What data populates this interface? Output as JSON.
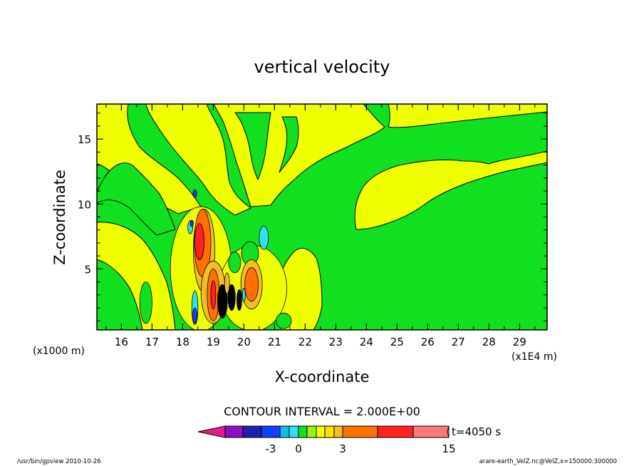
{
  "chart_data": {
    "type": "heatmap",
    "title": "vertical velocity",
    "xlabel": "X-coordinate",
    "ylabel": "Z-coordinate",
    "x_unit_label": "(x1E4 m)",
    "y_unit_label": "(x1000 m)",
    "xlim": [
      15.2,
      29.9
    ],
    "ylim": [
      0.3,
      17.7
    ],
    "x_ticks": [
      16,
      17,
      18,
      19,
      20,
      21,
      22,
      23,
      24,
      25,
      26,
      27,
      28,
      29
    ],
    "y_ticks": [
      5,
      10,
      15
    ],
    "contour_interval_text": "CONTOUR INTERVAL = 2.000E+00",
    "time_label": "t=4050 s",
    "colorbar": {
      "labels": [
        {
          "text": "-3",
          "value": -3
        },
        {
          "text": "0",
          "value": 0
        },
        {
          "text": "3",
          "value": 3
        },
        {
          "text": "15",
          "value": 15
        }
      ],
      "levels": [
        {
          "lo": -99,
          "hi": -12,
          "color": "#e8188f"
        },
        {
          "lo": -12,
          "hi": -8,
          "color": "#8a10c8"
        },
        {
          "lo": -8,
          "hi": -4,
          "color": "#2020b0"
        },
        {
          "lo": -4,
          "hi": -2,
          "color": "#1040ff"
        },
        {
          "lo": -2,
          "hi": -1,
          "color": "#18b8f0"
        },
        {
          "lo": -1,
          "hi": 0,
          "color": "#30e0f0"
        },
        {
          "lo": 0,
          "hi": 0.5,
          "color": "#10e020"
        },
        {
          "lo": 0.5,
          "hi": 1,
          "color": "#a0f010"
        },
        {
          "lo": 1,
          "hi": 1.5,
          "color": "#f0ff00"
        },
        {
          "lo": 1.5,
          "hi": 2,
          "color": "#ffe000"
        },
        {
          "lo": 2,
          "hi": 3,
          "color": "#f0c020"
        },
        {
          "lo": 3,
          "hi": 6,
          "color": "#ff7000"
        },
        {
          "lo": 6,
          "hi": 9,
          "color": "#ff2020"
        },
        {
          "lo": 9,
          "hi": 12,
          "color": "#ff7878"
        },
        {
          "lo": 12,
          "hi": 99,
          "color": "#ffc0c0"
        }
      ]
    },
    "field_colors": {
      "green": "#10e020",
      "yellow": "#f0ff00",
      "amber": "#f0c020",
      "orange": "#ff7000",
      "red": "#ff2020",
      "cyan": "#30e0f0",
      "blue": "#1040ff",
      "black": "#000000"
    },
    "regions": [
      {
        "kind": "ellipse",
        "color": "yellow",
        "cx": 18.6,
        "cy": 5.0,
        "rx": 1.0,
        "ry": 4.8
      },
      {
        "kind": "ellipse",
        "color": "yellow",
        "cx": 20.3,
        "cy": 3.5,
        "rx": 1.1,
        "ry": 3.3
      },
      {
        "kind": "ellipse",
        "color": "green",
        "cx": 20.2,
        "cy": 6.2,
        "rx": 0.28,
        "ry": 0.9
      },
      {
        "kind": "ellipse",
        "color": "green",
        "cx": 19.7,
        "cy": 5.5,
        "rx": 0.2,
        "ry": 0.8
      },
      {
        "kind": "ellipse",
        "color": "amber",
        "cx": 18.7,
        "cy": 6.4,
        "rx": 0.35,
        "ry": 3.2
      },
      {
        "kind": "ellipse",
        "color": "orange",
        "cx": 18.65,
        "cy": 7.0,
        "rx": 0.27,
        "ry": 2.6
      },
      {
        "kind": "ellipse",
        "color": "red",
        "cx": 18.55,
        "cy": 7.1,
        "rx": 0.15,
        "ry": 1.4
      },
      {
        "kind": "ellipse",
        "color": "cyan",
        "cx": 18.25,
        "cy": 8.2,
        "rx": 0.08,
        "ry": 0.5
      },
      {
        "kind": "ellipse",
        "color": "blue",
        "cx": 18.3,
        "cy": 8.5,
        "rx": 0.05,
        "ry": 0.25
      },
      {
        "kind": "ellipse",
        "color": "cyan",
        "cx": 20.65,
        "cy": 7.4,
        "rx": 0.15,
        "ry": 0.9
      },
      {
        "kind": "ellipse",
        "color": "blue",
        "cx": 18.4,
        "cy": 10.8,
        "rx": 0.06,
        "ry": 0.3
      },
      {
        "kind": "ellipse",
        "color": "amber",
        "cx": 19.0,
        "cy": 3.2,
        "rx": 0.4,
        "ry": 2.4
      },
      {
        "kind": "ellipse",
        "color": "orange",
        "cx": 19.0,
        "cy": 3.0,
        "rx": 0.2,
        "ry": 2.0
      },
      {
        "kind": "ellipse",
        "color": "red",
        "cx": 19.0,
        "cy": 3.0,
        "rx": 0.08,
        "ry": 1.1
      },
      {
        "kind": "ellipse",
        "color": "amber",
        "cx": 20.25,
        "cy": 3.8,
        "rx": 0.35,
        "ry": 1.9
      },
      {
        "kind": "ellipse",
        "color": "orange",
        "cx": 20.25,
        "cy": 3.8,
        "rx": 0.22,
        "ry": 1.3
      },
      {
        "kind": "ellipse",
        "color": "black",
        "cx": 19.3,
        "cy": 2.5,
        "rx": 0.16,
        "ry": 1.3
      },
      {
        "kind": "ellipse",
        "color": "black",
        "cx": 19.6,
        "cy": 2.8,
        "rx": 0.12,
        "ry": 1.0
      },
      {
        "kind": "ellipse",
        "color": "black",
        "cx": 19.85,
        "cy": 2.6,
        "rx": 0.08,
        "ry": 0.8
      },
      {
        "kind": "ellipse",
        "color": "cyan",
        "cx": 18.4,
        "cy": 2.0,
        "rx": 0.1,
        "ry": 1.3
      },
      {
        "kind": "ellipse",
        "color": "blue",
        "cx": 18.4,
        "cy": 1.4,
        "rx": 0.07,
        "ry": 0.6
      },
      {
        "kind": "ellipse",
        "color": "cyan",
        "cx": 20.0,
        "cy": 3.0,
        "rx": 0.05,
        "ry": 0.5
      },
      {
        "kind": "ellipse",
        "color": "amber",
        "cx": 19.45,
        "cy": 3.9,
        "rx": 0.08,
        "ry": 0.8
      },
      {
        "kind": "ellipse",
        "color": "green",
        "cx": 21.3,
        "cy": 1.0,
        "rx": 0.25,
        "ry": 0.6
      },
      {
        "kind": "ellipse",
        "color": "green",
        "cx": 16.8,
        "cy": 2.4,
        "rx": 0.2,
        "ry": 1.6
      }
    ]
  },
  "footer": {
    "left": "/usr/bin/gpview   2010-10-26",
    "right": "arare-earth_VelZ.nc@VelZ,x=150000:300000"
  }
}
